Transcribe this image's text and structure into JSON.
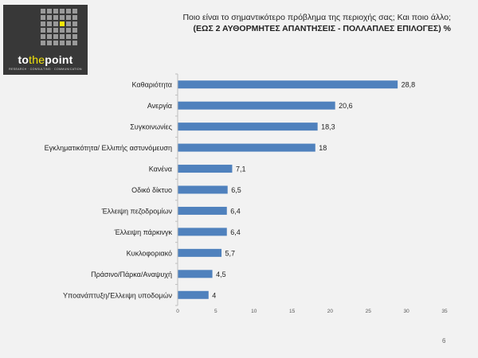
{
  "logo": {
    "brand_prefix": "to",
    "brand_mid": "the",
    "brand_suffix": "point",
    "tagline": "RESEARCH · CONSULTING · COMMUNICATION"
  },
  "title": {
    "line1": "Ποιο είναι το σημαντικότερο πρόβλημα της περιοχής σας; Και ποιο άλλο;",
    "line2": "(ΕΩΣ 2 ΑΥΘΟΡΜΗΤΕΣ ΑΠΑΝΤΗΣΕΙΣ  - ΠΟΛΛΑΠΛΕΣ ΕΠΙΛΟΓΕΣ) %"
  },
  "page_number": "6",
  "colors": {
    "bar": "#4f81bd",
    "background": "#f2f2f2",
    "logo_bg": "#383838",
    "logo_accent": "#f6e70a"
  },
  "chart_data": {
    "type": "bar",
    "orientation": "horizontal",
    "categories": [
      "Καθαριότητα",
      "Ανεργία",
      "Συγκοινωνίες",
      "Εγκληματικότητα/ Ελλιπής αστυνόμευση",
      "Κανένα",
      "Οδικό δίκτυο",
      "Έλλειψη πεζοδρομίων",
      "Έλλειψη πάρκινγκ",
      "Κυκλοφοριακό",
      "Πράσινο/Πάρκα/Αναψυχή",
      "Υποανάπτυξη/Έλλειψη υποδομών"
    ],
    "values": [
      28.8,
      20.6,
      18.3,
      18,
      7.1,
      6.5,
      6.4,
      6.4,
      5.7,
      4.5,
      4
    ],
    "value_labels": [
      "28,8",
      "20,6",
      "18,3",
      "18",
      "7,1",
      "6,5",
      "6,4",
      "6,4",
      "5,7",
      "4,5",
      "4"
    ],
    "xlim": [
      0,
      35
    ],
    "xticks": [
      0,
      5,
      10,
      15,
      20,
      25,
      30,
      35
    ],
    "grid": false
  }
}
